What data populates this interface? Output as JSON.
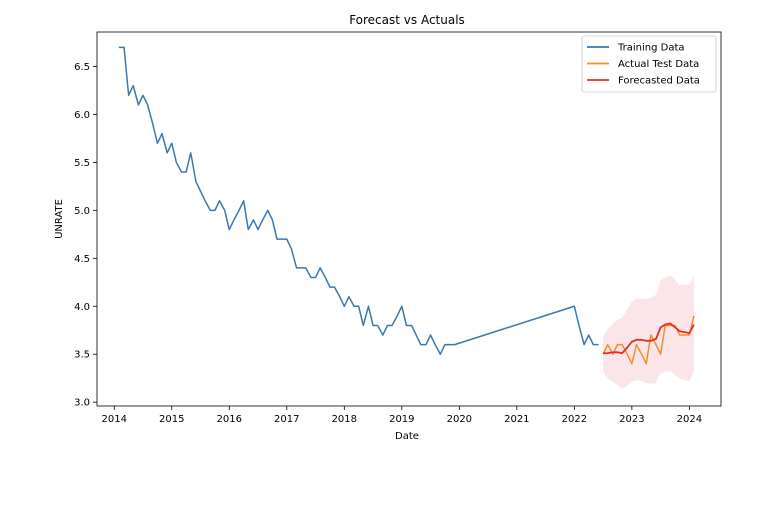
{
  "chart_data": {
    "type": "line",
    "title": "Forecast vs Actuals",
    "xlabel": "Date",
    "ylabel": "UNRATE",
    "xlim": [
      2013.7,
      2024.55
    ],
    "ylim": [
      2.96,
      6.86
    ],
    "x_ticks": [
      2014,
      2015,
      2016,
      2017,
      2018,
      2019,
      2020,
      2021,
      2022,
      2023,
      2024
    ],
    "y_ticks": [
      3.0,
      3.5,
      4.0,
      4.5,
      5.0,
      5.5,
      6.0,
      6.5
    ],
    "y_tick_labels": [
      "3.0",
      "3.5",
      "4.0",
      "4.5",
      "5.0",
      "5.5",
      "6.0",
      "6.5"
    ],
    "grid": false,
    "legend_position": "top-right",
    "series": [
      {
        "name": "Training Data",
        "color": "#3a78b0",
        "x": [
          2014.08,
          2014.17,
          2014.25,
          2014.33,
          2014.42,
          2014.5,
          2014.58,
          2014.67,
          2014.75,
          2014.83,
          2014.92,
          2015.0,
          2015.08,
          2015.17,
          2015.25,
          2015.33,
          2015.42,
          2015.5,
          2015.58,
          2015.67,
          2015.75,
          2015.83,
          2015.92,
          2016.0,
          2016.08,
          2016.17,
          2016.25,
          2016.33,
          2016.42,
          2016.5,
          2016.58,
          2016.67,
          2016.75,
          2016.83,
          2016.92,
          2017.0,
          2017.08,
          2017.17,
          2017.25,
          2017.33,
          2017.42,
          2017.5,
          2017.58,
          2017.67,
          2017.75,
          2017.83,
          2017.92,
          2018.0,
          2018.08,
          2018.17,
          2018.25,
          2018.33,
          2018.42,
          2018.5,
          2018.58,
          2018.67,
          2018.75,
          2018.83,
          2018.92,
          2019.0,
          2019.08,
          2019.17,
          2019.25,
          2019.33,
          2019.42,
          2019.5,
          2019.58,
          2019.67,
          2019.75,
          2019.83,
          2019.92,
          2022.0,
          2022.08,
          2022.17,
          2022.25,
          2022.33,
          2022.42
        ],
        "values": [
          6.7,
          6.7,
          6.2,
          6.3,
          6.1,
          6.2,
          6.1,
          5.9,
          5.7,
          5.8,
          5.6,
          5.7,
          5.5,
          5.4,
          5.4,
          5.6,
          5.3,
          5.2,
          5.1,
          5.0,
          5.0,
          5.1,
          5.0,
          4.8,
          4.9,
          5.0,
          5.1,
          4.8,
          4.9,
          4.8,
          4.9,
          5.0,
          4.9,
          4.7,
          4.7,
          4.7,
          4.6,
          4.4,
          4.4,
          4.4,
          4.3,
          4.3,
          4.4,
          4.3,
          4.2,
          4.2,
          4.1,
          4.0,
          4.1,
          4.0,
          4.0,
          3.8,
          4.0,
          3.8,
          3.8,
          3.7,
          3.8,
          3.8,
          3.9,
          4.0,
          3.8,
          3.8,
          3.7,
          3.6,
          3.6,
          3.7,
          3.6,
          3.5,
          3.6,
          3.6,
          3.6,
          4.0,
          3.8,
          3.6,
          3.7,
          3.6,
          3.6
        ]
      },
      {
        "name": "Actual Test Data",
        "color": "#f28e2b",
        "x": [
          2022.5,
          2022.58,
          2022.67,
          2022.75,
          2022.83,
          2022.92,
          2023.0,
          2023.08,
          2023.17,
          2023.25,
          2023.33,
          2023.42,
          2023.5,
          2023.58,
          2023.67,
          2023.75,
          2023.83,
          2023.92,
          2024.0,
          2024.08
        ],
        "values": [
          3.5,
          3.6,
          3.5,
          3.6,
          3.6,
          3.5,
          3.4,
          3.6,
          3.5,
          3.4,
          3.7,
          3.6,
          3.5,
          3.8,
          3.8,
          3.8,
          3.7,
          3.7,
          3.7,
          3.9
        ]
      },
      {
        "name": "Forecasted Data",
        "color": "#e1301f",
        "x": [
          2022.5,
          2022.58,
          2022.67,
          2022.75,
          2022.83,
          2022.92,
          2023.0,
          2023.08,
          2023.17,
          2023.25,
          2023.33,
          2023.42,
          2023.5,
          2023.58,
          2023.67,
          2023.75,
          2023.83,
          2023.92,
          2024.0,
          2024.08
        ],
        "values": [
          3.51,
          3.51,
          3.52,
          3.52,
          3.51,
          3.57,
          3.63,
          3.65,
          3.65,
          3.64,
          3.64,
          3.66,
          3.78,
          3.81,
          3.82,
          3.78,
          3.74,
          3.73,
          3.72,
          3.81
        ],
        "ci_upper": [
          3.68,
          3.76,
          3.82,
          3.86,
          3.88,
          3.97,
          4.05,
          4.08,
          4.08,
          4.08,
          4.09,
          4.12,
          4.27,
          4.3,
          4.32,
          4.28,
          4.22,
          4.23,
          4.22,
          4.31
        ],
        "ci_lower": [
          3.32,
          3.25,
          3.21,
          3.18,
          3.14,
          3.17,
          3.21,
          3.23,
          3.22,
          3.2,
          3.19,
          3.2,
          3.3,
          3.32,
          3.32,
          3.28,
          3.25,
          3.23,
          3.22,
          3.31
        ]
      }
    ],
    "confidence_band_color": "#f7c6cf"
  }
}
